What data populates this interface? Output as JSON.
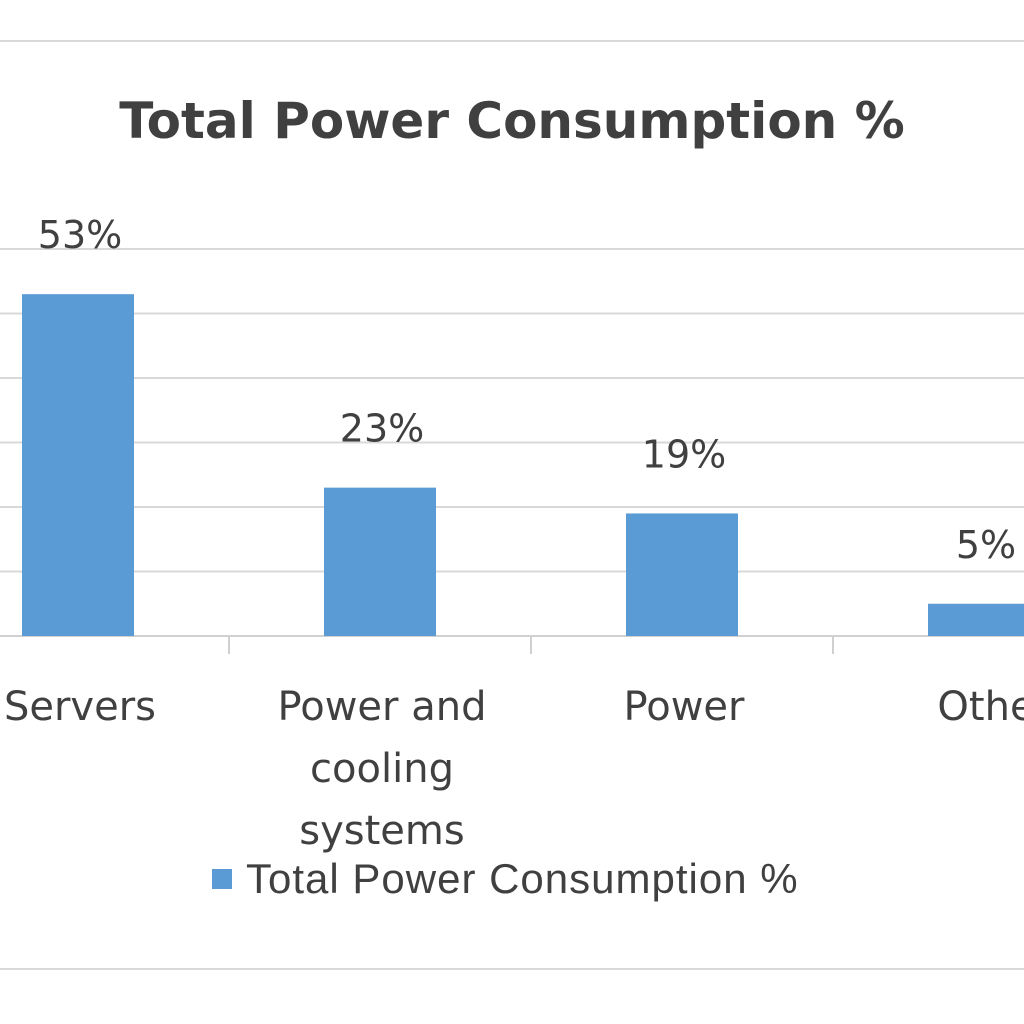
{
  "chart_data": {
    "type": "bar",
    "title": "Total Power Consumption %",
    "categories": [
      [
        "Servers"
      ],
      [
        "Power and",
        "cooling",
        "systems"
      ],
      [
        "Power"
      ],
      [
        "Othe"
      ]
    ],
    "series": [
      {
        "name": "Total Power Consumption %",
        "values": [
          53,
          23,
          19,
          5
        ]
      }
    ],
    "data_labels": [
      "53%",
      "23%",
      "19%",
      "5%"
    ],
    "ylim": [
      0,
      60
    ],
    "grid": true,
    "legend": "bottom",
    "colors": {
      "bar": "#5b9bd5",
      "grid": "#d9d9d9",
      "text": "#404040"
    }
  }
}
